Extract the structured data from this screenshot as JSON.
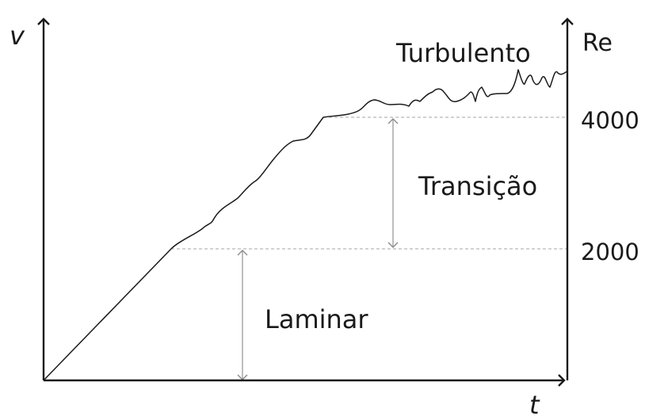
{
  "axes": {
    "left_label": "v",
    "bottom_label": "t",
    "right_label": "Re"
  },
  "ticks": {
    "upper": "4000",
    "lower": "2000"
  },
  "regions": {
    "turbulent": "Turbulento",
    "transition": "Transição",
    "laminar": "Laminar"
  },
  "colors": {
    "ink": "#1a1a1a",
    "guide": "#b0b0b0"
  }
}
